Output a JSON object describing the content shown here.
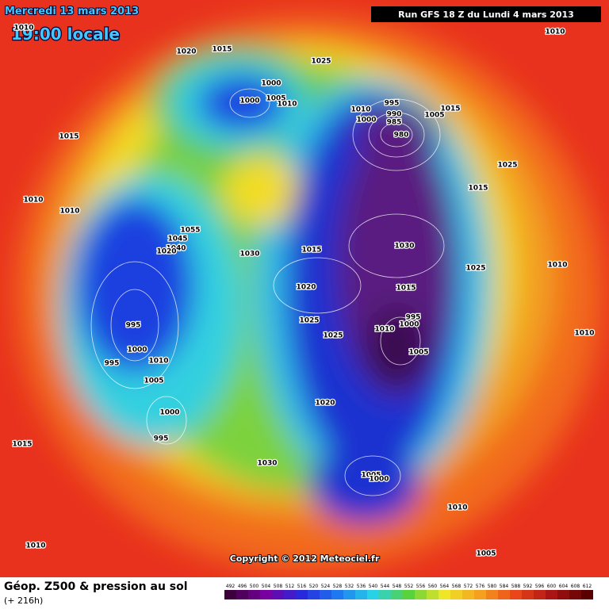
{
  "header": {
    "date": "Mercredi 13 mars 2013",
    "time": "19:00 locale",
    "run": "Run GFS 18 Z du Lundi 4 mars 2013"
  },
  "pressure_labels": [
    "1010",
    "1020",
    "1015",
    "1025",
    "1010",
    "1000",
    "1000",
    "1005",
    "1010",
    "1010",
    "995",
    "990",
    "985",
    "1000",
    "1005",
    "1015",
    "980",
    "1015",
    "1025",
    "1015",
    "1010",
    "1010",
    "1055",
    "1045",
    "1040",
    "1020",
    "1030",
    "1015",
    "1030",
    "1025",
    "1010",
    "1020",
    "1015",
    "995",
    "1000",
    "1010",
    "1010",
    "1025",
    "1025",
    "995",
    "1000",
    "1005",
    "995",
    "1010",
    "1005",
    "1020",
    "1000",
    "995",
    "1015",
    "1030",
    "1005",
    "1000",
    "1010",
    "1005",
    "1010"
  ],
  "copyright": "Copyright © 2012 Meteociel.fr",
  "footer": {
    "title": "Géop. Z500 & pression au sol",
    "lead": "(+ 216h)"
  },
  "colorbar": {
    "ticks": [
      492,
      496,
      500,
      504,
      508,
      512,
      516,
      520,
      524,
      528,
      532,
      536,
      540,
      544,
      548,
      552,
      556,
      560,
      564,
      568,
      572,
      576,
      580,
      584,
      588,
      592,
      596,
      600,
      604,
      608,
      612
    ]
  }
}
